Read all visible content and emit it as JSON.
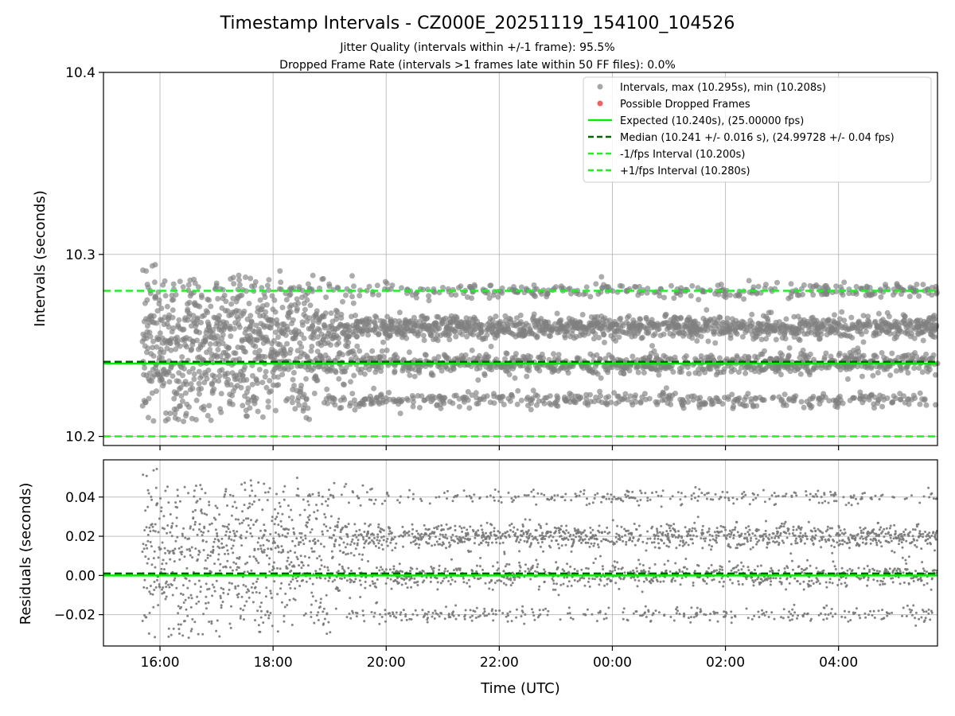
{
  "chart_data": {
    "type": "scatter",
    "title": "Timestamp Intervals - CZ000E_20251119_154100_104526",
    "subtitle_lines": [
      "Jitter Quality (intervals within +/-1 frame): 95.5%",
      "Dropped Frame Rate (intervals >1 frames late within 50 FF files): 0.0%"
    ],
    "xlabel": "Time (UTC)",
    "x_unit": "hours since 15:00 UTC",
    "xlim": [
      0,
      14.75
    ],
    "x_data_range": [
      0.69,
      14.75
    ],
    "x_ticks": [
      {
        "value": 1,
        "label": "16:00"
      },
      {
        "value": 3,
        "label": "18:00"
      },
      {
        "value": 5,
        "label": "20:00"
      },
      {
        "value": 7,
        "label": "22:00"
      },
      {
        "value": 9,
        "label": "00:00"
      },
      {
        "value": 11,
        "label": "02:00"
      },
      {
        "value": 13,
        "label": "04:00"
      }
    ],
    "grid": true,
    "panels": [
      {
        "name": "intervals",
        "ylabel": "Intervals (seconds)",
        "ylim": [
          10.195,
          10.4
        ],
        "y_ticks": [
          {
            "value": 10.2,
            "label": "10.2"
          },
          {
            "value": 10.3,
            "label": "10.3"
          },
          {
            "value": 10.4,
            "label": "10.4"
          }
        ],
        "series": [
          {
            "name": "Intervals, max (10.295s), min (10.208s)",
            "kind": "scatter",
            "color": "#808080",
            "clusters": [
              {
                "center": 10.26,
                "spread": 0.003,
                "weight": 0.42
              },
              {
                "center": 10.24,
                "spread": 0.003,
                "weight": 0.32
              },
              {
                "center": 10.28,
                "spread": 0.002,
                "weight": 0.12
              },
              {
                "center": 10.22,
                "spread": 0.002,
                "weight": 0.14
              }
            ],
            "max": 10.295,
            "min": 10.208
          },
          {
            "name": "Possible Dropped Frames",
            "kind": "scatter",
            "color": "#f06060",
            "count": 0
          },
          {
            "name": "Expected (10.240s), (25.00000 fps)",
            "kind": "hline",
            "value": 10.24,
            "color": "#00ee00",
            "style": "solid"
          },
          {
            "name": "Median (10.241 +/- 0.016 s), (24.99728 +/- 0.04 fps)",
            "kind": "hline",
            "value": 10.241,
            "color": "#006400",
            "style": "dashed"
          },
          {
            "name": "-1/fps Interval (10.200s)",
            "kind": "hline",
            "value": 10.2,
            "color": "#22ee22",
            "style": "dashed"
          },
          {
            "name": "+1/fps Interval (10.280s)",
            "kind": "hline",
            "value": 10.28,
            "color": "#22ee22",
            "style": "dashed"
          }
        ],
        "legend_location": "top-right"
      },
      {
        "name": "residuals",
        "ylabel": "Residuals (seconds)",
        "ylim": [
          -0.036,
          0.059
        ],
        "y_ticks": [
          {
            "value": -0.02,
            "label": "−0.02"
          },
          {
            "value": 0.0,
            "label": "0.00"
          },
          {
            "value": 0.02,
            "label": "0.02"
          },
          {
            "value": 0.04,
            "label": "0.04"
          }
        ],
        "series": [
          {
            "name": "Residuals",
            "kind": "scatter",
            "color": "#777777",
            "clusters": [
              {
                "center": 0.02,
                "spread": 0.003,
                "weight": 0.42
              },
              {
                "center": 0.0,
                "spread": 0.003,
                "weight": 0.32
              },
              {
                "center": 0.04,
                "spread": 0.002,
                "weight": 0.12
              },
              {
                "center": -0.02,
                "spread": 0.002,
                "weight": 0.14
              }
            ],
            "max": 0.055,
            "min": -0.032
          },
          {
            "name": "Zero",
            "kind": "hline",
            "value": 0.0,
            "color": "#00ee00",
            "style": "solid"
          },
          {
            "name": "Median offset",
            "kind": "hline",
            "value": 0.001,
            "color": "#006400",
            "style": "dashed"
          }
        ]
      }
    ]
  }
}
